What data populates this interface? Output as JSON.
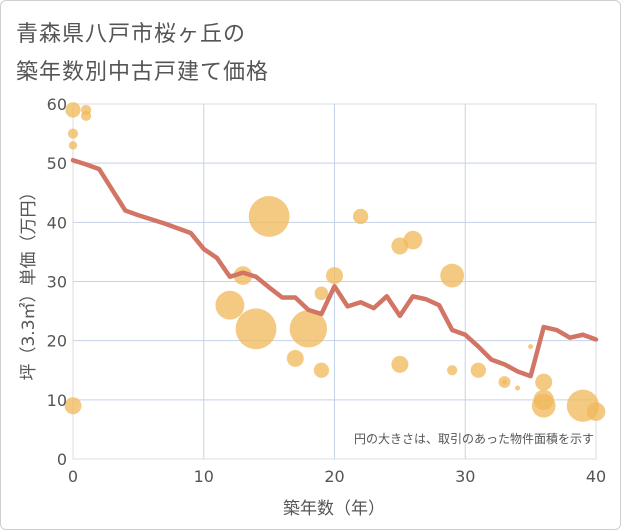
{
  "title_lines": [
    "青森県八戸市桜ヶ丘の",
    "築年数別中古戸建て価格"
  ],
  "chart_data": {
    "type": "scatter",
    "title": "青森県八戸市桜ヶ丘の築年数別中古戸建て価格",
    "xlabel": "築年数（年）",
    "ylabel": "坪（3.3㎡）単価（万円）",
    "xlim": [
      0,
      40
    ],
    "ylim": [
      0,
      60
    ],
    "xticks": [
      0,
      10,
      20,
      30,
      40
    ],
    "yticks": [
      0,
      10,
      20,
      30,
      40,
      50,
      60
    ],
    "grid": true,
    "note": "円の大きさは、取引のあった物件面積を示す",
    "colors": {
      "bubble": "#f0b85a",
      "line": "#d27565"
    },
    "bubbles": [
      {
        "x": 0,
        "y": 59,
        "size": 0.45
      },
      {
        "x": 0,
        "y": 55,
        "size": 0.3
      },
      {
        "x": 0,
        "y": 53,
        "size": 0.25
      },
      {
        "x": 1,
        "y": 59,
        "size": 0.3
      },
      {
        "x": 1,
        "y": 58,
        "size": 0.3
      },
      {
        "x": 0,
        "y": 9,
        "size": 0.5
      },
      {
        "x": 12,
        "y": 26,
        "size": 0.85
      },
      {
        "x": 13,
        "y": 31,
        "size": 0.55
      },
      {
        "x": 14,
        "y": 22,
        "size": 1.2
      },
      {
        "x": 15,
        "y": 41,
        "size": 1.2
      },
      {
        "x": 17,
        "y": 17,
        "size": 0.5
      },
      {
        "x": 18,
        "y": 22,
        "size": 1.1
      },
      {
        "x": 19,
        "y": 15,
        "size": 0.45
      },
      {
        "x": 19,
        "y": 28,
        "size": 0.4
      },
      {
        "x": 20,
        "y": 31,
        "size": 0.5
      },
      {
        "x": 22,
        "y": 41,
        "size": 0.45
      },
      {
        "x": 25,
        "y": 36,
        "size": 0.5
      },
      {
        "x": 25,
        "y": 16,
        "size": 0.5
      },
      {
        "x": 26,
        "y": 37,
        "size": 0.55
      },
      {
        "x": 29,
        "y": 31,
        "size": 0.7
      },
      {
        "x": 29,
        "y": 15,
        "size": 0.3
      },
      {
        "x": 31,
        "y": 15,
        "size": 0.45
      },
      {
        "x": 33,
        "y": 13,
        "size": 0.35
      },
      {
        "x": 33,
        "y": 13,
        "size": 0.12
      },
      {
        "x": 34,
        "y": 12,
        "size": 0.1
      },
      {
        "x": 35,
        "y": 19,
        "size": 0.1
      },
      {
        "x": 36,
        "y": 13,
        "size": 0.5
      },
      {
        "x": 36,
        "y": 10,
        "size": 0.6
      },
      {
        "x": 36,
        "y": 9,
        "size": 0.7
      },
      {
        "x": 39,
        "y": 9,
        "size": 0.95
      },
      {
        "x": 40,
        "y": 8,
        "size": 0.55
      }
    ],
    "line": {
      "x": [
        0,
        1,
        2,
        3,
        4,
        5,
        6,
        7,
        8,
        9,
        10,
        11,
        12,
        13,
        14,
        15,
        16,
        17,
        18,
        19,
        20,
        21,
        22,
        23,
        24,
        25,
        26,
        27,
        28,
        29,
        30,
        31,
        32,
        33,
        34,
        35,
        36,
        37,
        38,
        39,
        40
      ],
      "y": [
        50.5,
        49.8,
        49,
        45.5,
        42,
        41.2,
        40.5,
        39.8,
        39,
        38.2,
        35.5,
        34,
        30.8,
        31.5,
        30.8,
        29,
        27.3,
        27.3,
        25.2,
        24.5,
        29.2,
        25.8,
        26.5,
        25.5,
        27.5,
        24.2,
        27.5,
        27,
        26,
        21.8,
        21,
        19,
        16.8,
        16,
        14.8,
        14,
        22.3,
        21.8,
        20.5,
        21,
        20.2
      ]
    }
  }
}
